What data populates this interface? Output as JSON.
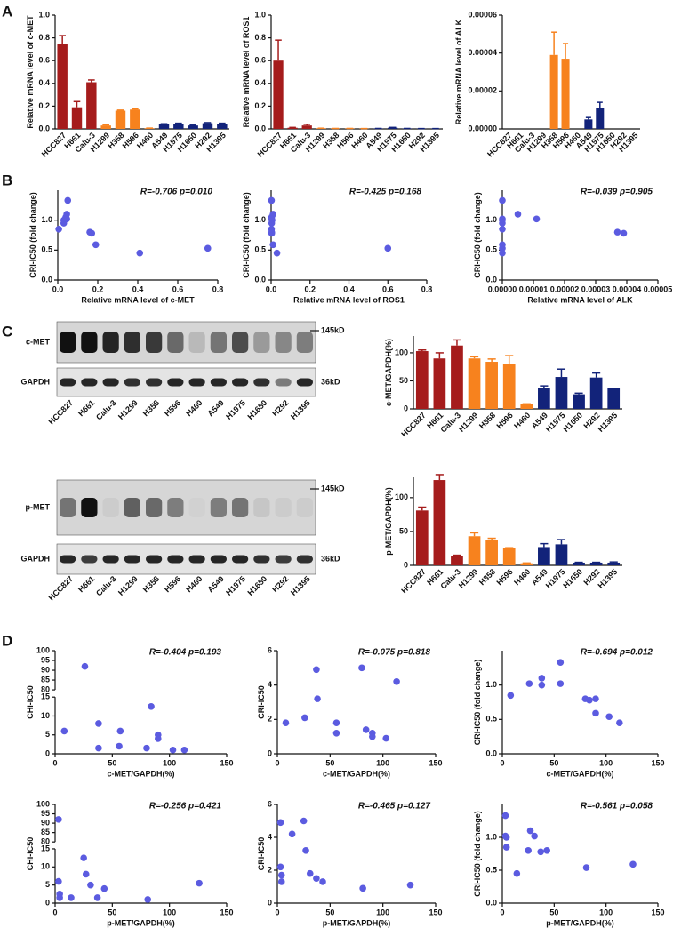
{
  "panels": [
    "A",
    "B",
    "C",
    "D"
  ],
  "blots": {
    "lanes": [
      "HCC827",
      "H661",
      "Calu-3",
      "H1299",
      "H358",
      "H596",
      "H460",
      "A549",
      "H1975",
      "H1650",
      "H292",
      "H1395"
    ],
    "rows": [
      {
        "protein": "c-MET",
        "marker": "145kD"
      },
      {
        "protein": "GAPDH",
        "marker": "36kD"
      },
      {
        "protein": "p-MET",
        "marker": "145kD"
      },
      {
        "protein": "GAPDH",
        "marker": "36kD"
      }
    ]
  },
  "chart_data": [
    {
      "type": "bar",
      "ylabel": "Relative mRNA level of c-MET",
      "categories": [
        "HCC827",
        "H661",
        "Calu-3",
        "H1299",
        "H358",
        "H596",
        "H460",
        "A549",
        "H1975",
        "H1650",
        "H292",
        "H1395"
      ],
      "values": [
        0.75,
        0.19,
        0.41,
        0.03,
        0.16,
        0.17,
        0.005,
        0.04,
        0.045,
        0.03,
        0.05,
        0.045
      ],
      "errors": [
        0.07,
        0.05,
        0.02,
        0.005,
        0.005,
        0.005,
        0.002,
        0.005,
        0.005,
        0.003,
        0.005,
        0.005
      ],
      "colors": [
        "#a51c1c",
        "#a51c1c",
        "#a51c1c",
        "#f7821e",
        "#f7821e",
        "#f7821e",
        "#f7821e",
        "#12237a",
        "#12237a",
        "#12237a",
        "#12237a",
        "#12237a"
      ],
      "ylim": [
        0,
        1.0
      ],
      "yticks": [
        {
          "value": 0,
          "label": "0.0"
        },
        0.2,
        0.4,
        0.6,
        0.8,
        {
          "value": 1.0,
          "label": "1.0"
        }
      ]
    },
    {
      "type": "bar",
      "ylabel": "Relative mRNA level of ROS1",
      "categories": [
        "HCC827",
        "H661",
        "Calu-3",
        "H1299",
        "H358",
        "H596",
        "H460",
        "A549",
        "H1975",
        "H1650",
        "H292",
        "H1395"
      ],
      "values": [
        0.6,
        0.01,
        0.03,
        0.005,
        0.003,
        0.003,
        0.002,
        0.003,
        0.01,
        0.003,
        0.002,
        0.002
      ],
      "errors": [
        0.18,
        0.003,
        0.01,
        0.001,
        0.001,
        0.001,
        0.001,
        0.001,
        0.003,
        0.001,
        0.001,
        0.001
      ],
      "colors": [
        "#a51c1c",
        "#a51c1c",
        "#a51c1c",
        "#f7821e",
        "#f7821e",
        "#f7821e",
        "#f7821e",
        "#12237a",
        "#12237a",
        "#12237a",
        "#12237a",
        "#12237a"
      ],
      "ylim": [
        0,
        1.0
      ],
      "yticks": [
        {
          "value": 0,
          "label": "0.0"
        },
        0.2,
        0.4,
        0.6,
        0.8,
        {
          "value": 1.0,
          "label": "1.0"
        }
      ]
    },
    {
      "type": "bar",
      "ylabel": "Relative mRNA level of ALK",
      "categories": [
        "HCC827",
        "H661",
        "Calu-3",
        "H1299",
        "H358",
        "H596",
        "H460",
        "A549",
        "H1975",
        "H1650",
        "H292",
        "H1395"
      ],
      "values": [
        0,
        0,
        0,
        0,
        3.9e-05,
        3.7e-05,
        0,
        5e-06,
        1.1e-05,
        0,
        0,
        0
      ],
      "errors": [
        0,
        0,
        0,
        0,
        1.2e-05,
        8e-06,
        0,
        1e-06,
        3e-06,
        0,
        0,
        0
      ],
      "colors": [
        "#a51c1c",
        "#a51c1c",
        "#a51c1c",
        "#f7821e",
        "#f7821e",
        "#f7821e",
        "#f7821e",
        "#12237a",
        "#12237a",
        "#12237a",
        "#12237a",
        "#12237a"
      ],
      "ylim": [
        0,
        6e-05
      ],
      "yticks": [
        {
          "value": 0,
          "label": "0.00000"
        },
        {
          "value": 2e-05,
          "label": "0.00002"
        },
        {
          "value": 4e-05,
          "label": "0.00004"
        },
        {
          "value": 6e-05,
          "label": "0.00006"
        }
      ]
    },
    {
      "type": "scatter",
      "xlabel": "Relative mRNA level of c-MET",
      "ylabel": "CRI-IC50 (fold change)",
      "annotation": "R=-0.706  p=0.010",
      "color": "#5b5be0",
      "x": [
        0.75,
        0.19,
        0.41,
        0.03,
        0.16,
        0.17,
        0.005,
        0.04,
        0.045,
        0.03,
        0.05,
        0.045
      ],
      "values": [
        0.53,
        0.59,
        0.45,
        1.0,
        0.8,
        0.78,
        0.85,
        1.05,
        1.1,
        0.95,
        1.33,
        1.02
      ],
      "xlim": [
        0,
        0.8
      ],
      "xticks": [
        {
          "value": 0,
          "label": "0.0"
        },
        0.2,
        0.4,
        0.6,
        0.8
      ],
      "ylim": [
        0,
        1.5
      ],
      "yticks": [
        {
          "value": 0,
          "label": "0.0"
        },
        0.5,
        {
          "value": 1.0,
          "label": "1.0"
        }
      ]
    },
    {
      "type": "scatter",
      "xlabel": "Relative mRNA level of ROS1",
      "ylabel": "CRI-IC50 (fold change)",
      "annotation": "R=-0.425  p=0.168",
      "color": "#5b5be0",
      "x": [
        0.6,
        0.01,
        0.03,
        0.005,
        0.003,
        0.003,
        0.002,
        0.003,
        0.01,
        0.003,
        0.002,
        0.002
      ],
      "values": [
        0.53,
        0.59,
        0.45,
        1.0,
        0.8,
        0.78,
        0.85,
        1.05,
        1.1,
        0.95,
        1.33,
        1.02
      ],
      "xlim": [
        0,
        0.8
      ],
      "xticks": [
        {
          "value": 0,
          "label": "0.0"
        },
        0.2,
        0.4,
        0.6,
        0.8
      ],
      "ylim": [
        0,
        1.5
      ],
      "yticks": [
        {
          "value": 0,
          "label": "0.0"
        },
        0.5,
        {
          "value": 1.0,
          "label": "1.0"
        }
      ]
    },
    {
      "type": "scatter",
      "xlabel": "Relative mRNA level of ALK",
      "ylabel": "CRI-IC50 (fold change)",
      "annotation": "R=-0.039  p=0.905",
      "color": "#5b5be0",
      "x": [
        0,
        0,
        0,
        0,
        3.9e-05,
        3.7e-05,
        0,
        5e-06,
        1.1e-05,
        0,
        0,
        0
      ],
      "values": [
        0.53,
        0.59,
        0.45,
        1.0,
        0.78,
        0.8,
        0.85,
        1.1,
        1.02,
        0.95,
        1.33,
        1.02
      ],
      "xlim": [
        0,
        5e-05
      ],
      "xticks": [
        {
          "value": 0,
          "label": "0.00000"
        },
        {
          "value": 1e-05,
          "label": "0.00001"
        },
        {
          "value": 2e-05,
          "label": "0.00002"
        },
        {
          "value": 3e-05,
          "label": "0.00003"
        },
        {
          "value": 4e-05,
          "label": "0.00004"
        },
        {
          "value": 5e-05,
          "label": "0.00005"
        }
      ],
      "ylim": [
        0,
        1.5
      ],
      "yticks": [
        {
          "value": 0,
          "label": "0.0"
        },
        0.5,
        {
          "value": 1.0,
          "label": "1.0"
        }
      ]
    },
    {
      "type": "bar",
      "ylabel": "c-MET/GAPDH(%)",
      "categories": [
        "HCC827",
        "H661",
        "Calu-3",
        "H1299",
        "H358",
        "H596",
        "H460",
        "A549",
        "H1975",
        "H1650",
        "H292",
        "H1395"
      ],
      "values": [
        103,
        90,
        113,
        90,
        84,
        80,
        8,
        38,
        57,
        26,
        56,
        38
      ],
      "errors": [
        2,
        10,
        10,
        3,
        5,
        15,
        1,
        3,
        14,
        2,
        8,
        0
      ],
      "colors": [
        "#a51c1c",
        "#a51c1c",
        "#a51c1c",
        "#f7821e",
        "#f7821e",
        "#f7821e",
        "#f7821e",
        "#12237a",
        "#12237a",
        "#12237a",
        "#12237a",
        "#12237a"
      ],
      "ylim": [
        0,
        130
      ],
      "yticks": [
        0,
        50,
        100
      ]
    },
    {
      "type": "bar",
      "ylabel": "p-MET/GAPDH(%)",
      "categories": [
        "HCC827",
        "H661",
        "Calu-3",
        "H1299",
        "H358",
        "H596",
        "H460",
        "A549",
        "H1975",
        "H1650",
        "H292",
        "H1395"
      ],
      "values": [
        81,
        126,
        14,
        43,
        37,
        25,
        3,
        27,
        31,
        4,
        4,
        4
      ],
      "errors": [
        5,
        8,
        1,
        5,
        3,
        1,
        0.5,
        5,
        7,
        0.5,
        0.5,
        1
      ],
      "colors": [
        "#a51c1c",
        "#a51c1c",
        "#a51c1c",
        "#f7821e",
        "#f7821e",
        "#f7821e",
        "#f7821e",
        "#12237a",
        "#12237a",
        "#12237a",
        "#12237a",
        "#12237a"
      ],
      "ylim": [
        0,
        130
      ],
      "yticks": [
        0,
        50,
        100
      ]
    },
    {
      "type": "scatter",
      "xlabel": "c-MET/GAPDH(%)",
      "ylabel": "CHI-IC50",
      "annotation": "R=-0.404  p=0.193",
      "color": "#5b5be0",
      "x": [
        103,
        90,
        113,
        90,
        84,
        80,
        8,
        38,
        57,
        26,
        56,
        38
      ],
      "values": [
        1,
        5,
        1,
        4,
        12.5,
        1.5,
        6,
        8,
        6,
        92,
        2,
        1.5
      ],
      "xlim": [
        0,
        150
      ],
      "xticks": [
        0,
        50,
        100,
        150
      ],
      "ylim": [
        0,
        100
      ],
      "ybreak": [
        15,
        80
      ],
      "yticks": [
        0,
        5,
        10,
        15,
        80,
        85,
        90,
        95,
        100
      ]
    },
    {
      "type": "scatter",
      "xlabel": "c-MET/GAPDH(%)",
      "ylabel": "CRI-IC50",
      "annotation": "R=-0.075  p=0.818",
      "color": "#5b5be0",
      "x": [
        8,
        26,
        37,
        38,
        56,
        56,
        80,
        84,
        90,
        90,
        103,
        113
      ],
      "values": [
        1.8,
        2.1,
        4.9,
        3.2,
        1.8,
        1.2,
        5.0,
        1.4,
        1.2,
        1.0,
        0.9,
        4.2
      ],
      "xlim": [
        0,
        150
      ],
      "xticks": [
        0,
        50,
        100,
        150
      ],
      "ylim": [
        0,
        6
      ],
      "yticks": [
        0,
        2,
        4,
        6
      ]
    },
    {
      "type": "scatter",
      "xlabel": "c-MET/GAPDH(%)",
      "ylabel": "CRI-IC50 (fold change)",
      "annotation": "R=-0.694  p=0.012",
      "color": "#5b5be0",
      "x": [
        8,
        26,
        38,
        38,
        56,
        56,
        80,
        84,
        90,
        90,
        103,
        113
      ],
      "values": [
        0.85,
        1.02,
        1.0,
        1.1,
        1.33,
        1.02,
        0.8,
        0.78,
        0.8,
        0.59,
        0.54,
        0.45
      ],
      "xlim": [
        0,
        150
      ],
      "xticks": [
        0,
        50,
        100,
        150
      ],
      "ylim": [
        0,
        1.5
      ],
      "yticks": [
        {
          "value": 0,
          "label": "0.0"
        },
        0.5,
        {
          "value": 1.0,
          "label": "1.0"
        }
      ]
    },
    {
      "type": "scatter",
      "xlabel": "p-MET/GAPDH(%)",
      "ylabel": "CHI-IC50",
      "annotation": "R=-0.256  p=0.421",
      "color": "#5b5be0",
      "x": [
        3,
        3,
        4,
        14,
        25,
        27,
        31,
        37,
        43,
        81,
        126,
        4
      ],
      "values": [
        92,
        6,
        1.5,
        1.5,
        12.5,
        8,
        5,
        1.5,
        4,
        1,
        5.5,
        2.5
      ],
      "xlim": [
        0,
        150
      ],
      "xticks": [
        0,
        50,
        100,
        150
      ],
      "ylim": [
        0,
        100
      ],
      "ybreak": [
        15,
        80
      ],
      "yticks": [
        0,
        5,
        10,
        15,
        80,
        85,
        90,
        95,
        100
      ]
    },
    {
      "type": "scatter",
      "xlabel": "p-MET/GAPDH(%)",
      "ylabel": "CRI-IC50",
      "annotation": "R=-0.465  p=0.127",
      "color": "#5b5be0",
      "x": [
        3,
        3,
        4,
        4,
        14,
        25,
        27,
        31,
        37,
        43,
        81,
        126
      ],
      "values": [
        4.9,
        2.2,
        1.7,
        1.3,
        4.2,
        5.0,
        3.2,
        1.8,
        1.5,
        1.3,
        0.9,
        1.1
      ],
      "xlim": [
        0,
        150
      ],
      "xticks": [
        0,
        50,
        100,
        150
      ],
      "ylim": [
        0,
        6
      ],
      "yticks": [
        0,
        2,
        4,
        6
      ]
    },
    {
      "type": "scatter",
      "xlabel": "p-MET/GAPDH(%)",
      "ylabel": "CRI-IC50 (fold change)",
      "annotation": "R=-0.561  p=0.058",
      "color": "#5b5be0",
      "x": [
        3,
        4,
        4,
        3,
        14,
        25,
        27,
        31,
        37,
        43,
        81,
        126
      ],
      "values": [
        1.33,
        1.0,
        0.85,
        1.02,
        0.45,
        0.8,
        1.1,
        1.02,
        0.78,
        0.8,
        0.54,
        0.59
      ],
      "xlim": [
        0,
        150
      ],
      "xticks": [
        0,
        50,
        100,
        150
      ],
      "ylim": [
        0,
        1.5
      ],
      "yticks": [
        {
          "value": 0,
          "label": "0.0"
        },
        0.5,
        {
          "value": 1.0,
          "label": "1.0"
        }
      ]
    }
  ]
}
